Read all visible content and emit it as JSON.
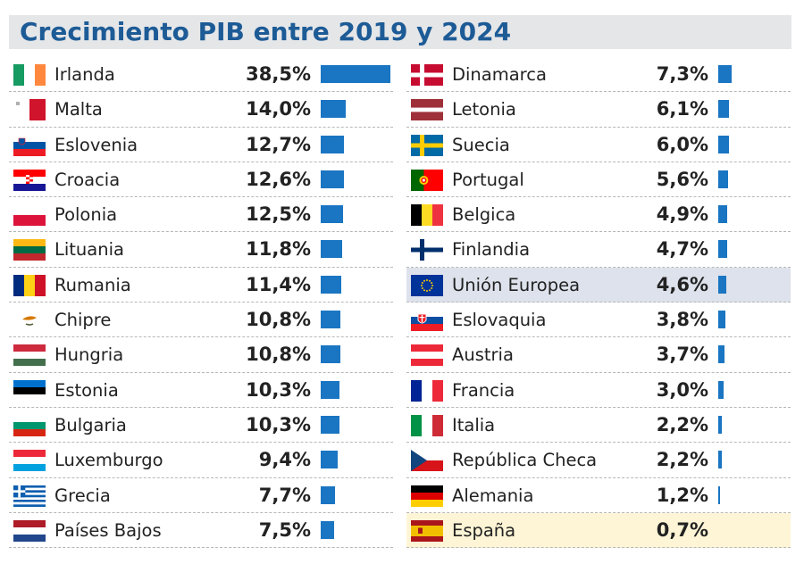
{
  "chart_data": {
    "type": "bar",
    "orientation": "horizontal",
    "title": "Crecimiento PIB entre 2019 y 2024",
    "unit": "%",
    "grid": false,
    "highlight_colors": {
      "Unión Europea": "#dde2ec",
      "España": "#fdf5d6"
    },
    "bar_color": "#1a75c2",
    "title_color": "#1d5b96",
    "rows": [
      {
        "country": "Irlanda",
        "flag": "ie",
        "label": "38,5%",
        "value": 38.5
      },
      {
        "country": "Malta",
        "flag": "mt",
        "label": "14,0%",
        "value": 14.0
      },
      {
        "country": "Eslovenia",
        "flag": "si",
        "label": "12,7%",
        "value": 12.7
      },
      {
        "country": "Croacia",
        "flag": "hr",
        "label": "12,6%",
        "value": 12.6
      },
      {
        "country": "Polonia",
        "flag": "pl",
        "label": "12,5%",
        "value": 12.5
      },
      {
        "country": "Lituania",
        "flag": "lt",
        "label": "11,8%",
        "value": 11.8
      },
      {
        "country": "Rumania",
        "flag": "ro",
        "label": "11,4%",
        "value": 11.4
      },
      {
        "country": "Chipre",
        "flag": "cy",
        "label": "10,8%",
        "value": 10.8
      },
      {
        "country": "Hungria",
        "flag": "hu",
        "label": "10,8%",
        "value": 10.8
      },
      {
        "country": "Estonia",
        "flag": "ee",
        "label": "10,3%",
        "value": 10.3
      },
      {
        "country": "Bulgaria",
        "flag": "bg",
        "label": "10,3%",
        "value": 10.3
      },
      {
        "country": "Luxemburgo",
        "flag": "lu",
        "label": "9,4%",
        "value": 9.4
      },
      {
        "country": "Grecia",
        "flag": "gr",
        "label": "7,7%",
        "value": 7.7
      },
      {
        "country": "Países Bajos",
        "flag": "nl",
        "label": "7,5%",
        "value": 7.5
      },
      {
        "country": "Dinamarca",
        "flag": "dk",
        "label": "7,3%",
        "value": 7.3
      },
      {
        "country": "Letonia",
        "flag": "lv",
        "label": "6,1%",
        "value": 6.1
      },
      {
        "country": "Suecia",
        "flag": "se",
        "label": "6,0%",
        "value": 6.0
      },
      {
        "country": "Portugal",
        "flag": "pt",
        "label": "5,6%",
        "value": 5.6
      },
      {
        "country": "Belgica",
        "flag": "be",
        "label": "4,9%",
        "value": 4.9
      },
      {
        "country": "Finlandia",
        "flag": "fi",
        "label": "4,7%",
        "value": 4.7
      },
      {
        "country": "Unión Europea",
        "flag": "eu",
        "label": "4,6%",
        "value": 4.6
      },
      {
        "country": "Eslovaquia",
        "flag": "sk",
        "label": "3,8%",
        "value": 3.8
      },
      {
        "country": "Austria",
        "flag": "at",
        "label": "3,7%",
        "value": 3.7
      },
      {
        "country": "Francia",
        "flag": "fr",
        "label": "3,0%",
        "value": 3.0
      },
      {
        "country": "Italia",
        "flag": "it",
        "label": "2,2%",
        "value": 2.2
      },
      {
        "country": "República Checa",
        "flag": "cz",
        "label": "2,2%",
        "value": 2.2
      },
      {
        "country": "Alemania",
        "flag": "de",
        "label": "1,2%",
        "value": 1.2
      },
      {
        "country": "España",
        "flag": "es",
        "label": "0,7%",
        "value": 0.7
      }
    ]
  }
}
